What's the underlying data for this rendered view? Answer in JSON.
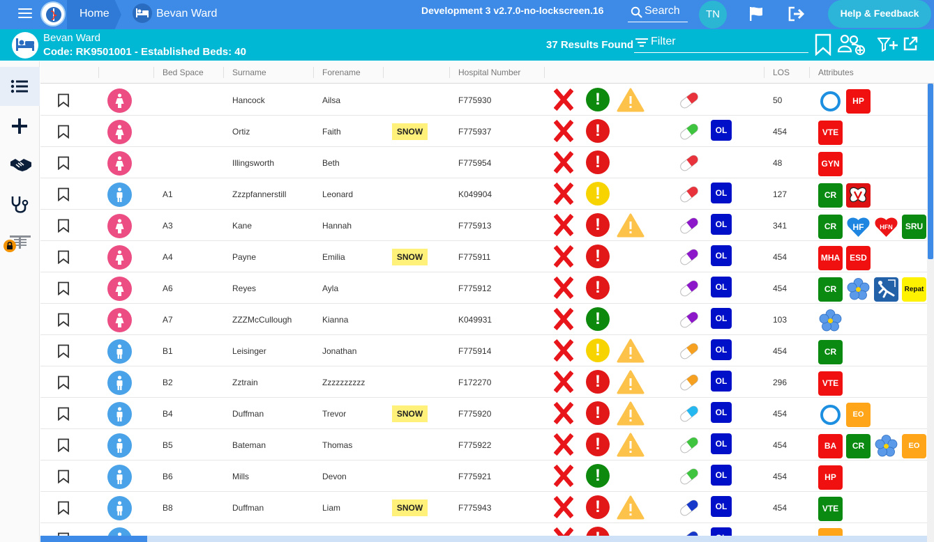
{
  "app": {
    "home_label": "Home",
    "ward_breadcrumb": "Bevan Ward",
    "environment": "Development 3 v2.7.0-no-lockscreen.16",
    "search_label": "Search",
    "user_initials": "TN",
    "help_label": "Help & Feedback"
  },
  "ward": {
    "name": "Bevan Ward",
    "code_line": "Code: RK9501001 - Established Beds: 40",
    "results": "37 Results Found",
    "filter_label": "Filter"
  },
  "colors": {
    "topbar": "#3d8be6",
    "wardbar": "#00b7d4",
    "female": "#ec4d82",
    "male": "#4aa3e8"
  },
  "sidebar": [
    "list-icon",
    "plus-icon",
    "handshake-icon",
    "stethoscope-icon",
    "locked-board-icon"
  ],
  "columns": {
    "bed_space": "Bed Space",
    "surname": "Surname",
    "forename": "Forename",
    "hospital_number": "Hospital Number",
    "los": "LOS",
    "attributes": "Attributes"
  },
  "rows": [
    {
      "sex": "f",
      "bed": "",
      "surname": "Hancock",
      "forename": "Ailsa",
      "snow": "",
      "hospital_number": "F775930",
      "alert": "green",
      "warning": true,
      "pill": "red",
      "ol": "",
      "los": "50",
      "attrs": [
        {
          "t": "ring",
          "l": ""
        },
        {
          "t": "red",
          "l": "HP"
        }
      ]
    },
    {
      "sex": "f",
      "bed": "",
      "surname": "Ortiz",
      "forename": "Faith",
      "snow": "SNOW",
      "hospital_number": "F775937",
      "alert": "red",
      "warning": false,
      "pill": "green",
      "ol": "OL",
      "los": "454",
      "attrs": [
        {
          "t": "red",
          "l": "VTE"
        }
      ]
    },
    {
      "sex": "f",
      "bed": "",
      "surname": "Illingsworth",
      "forename": "Beth",
      "snow": "",
      "hospital_number": "F775954",
      "alert": "red",
      "warning": false,
      "pill": "red",
      "ol": "",
      "los": "48",
      "attrs": [
        {
          "t": "red",
          "l": "GYN"
        }
      ]
    },
    {
      "sex": "m",
      "bed": "A1",
      "surname": "Zzzpfannerstill",
      "forename": "Leonard",
      "snow": "",
      "hospital_number": "K049904",
      "alert": "yellow",
      "warning": false,
      "pill": "red",
      "ol": "OL",
      "los": "127",
      "attrs": [
        {
          "t": "green",
          "l": "CR"
        },
        {
          "t": "butterfly",
          "l": ""
        }
      ]
    },
    {
      "sex": "f",
      "bed": "A3",
      "surname": "Kane",
      "forename": "Hannah",
      "snow": "",
      "hospital_number": "F775913",
      "alert": "red",
      "warning": true,
      "pill": "purple",
      "ol": "OL",
      "los": "341",
      "attrs": [
        {
          "t": "green",
          "l": "CR"
        },
        {
          "t": "heart-blue",
          "l": "HF"
        },
        {
          "t": "heart-red",
          "l": "HFN"
        },
        {
          "t": "green",
          "l": "SRU"
        }
      ]
    },
    {
      "sex": "f",
      "bed": "A4",
      "surname": "Payne",
      "forename": "Emilia",
      "snow": "SNOW",
      "hospital_number": "F775911",
      "alert": "red",
      "warning": false,
      "pill": "purple",
      "ol": "OL",
      "los": "454",
      "attrs": [
        {
          "t": "red",
          "l": "MHA"
        },
        {
          "t": "red",
          "l": "ESD"
        }
      ]
    },
    {
      "sex": "f",
      "bed": "A6",
      "surname": "Reyes",
      "forename": "Ayla",
      "snow": "",
      "hospital_number": "F775912",
      "alert": "red",
      "warning": false,
      "pill": "purple",
      "ol": "OL",
      "los": "454",
      "attrs": [
        {
          "t": "green",
          "l": "CR"
        },
        {
          "t": "flower",
          "l": ""
        },
        {
          "t": "fall",
          "l": ""
        },
        {
          "t": "yellow",
          "l": "Repat"
        }
      ]
    },
    {
      "sex": "f",
      "bed": "A7",
      "surname": "ZZZMcCullough",
      "forename": "Kianna",
      "snow": "",
      "hospital_number": "K049931",
      "alert": "green",
      "warning": false,
      "pill": "purple",
      "ol": "OL",
      "los": "103",
      "attrs": [
        {
          "t": "flower",
          "l": ""
        }
      ]
    },
    {
      "sex": "m",
      "bed": "B1",
      "surname": "Leisinger",
      "forename": "Jonathan",
      "snow": "",
      "hospital_number": "F775914",
      "alert": "yellow",
      "warning": true,
      "pill": "orange",
      "ol": "OL",
      "los": "454",
      "attrs": [
        {
          "t": "green",
          "l": "CR"
        }
      ]
    },
    {
      "sex": "m",
      "bed": "B2",
      "surname": "Zztrain",
      "forename": "Zzzzzzzzzz",
      "snow": "",
      "hospital_number": "F172270",
      "alert": "red",
      "warning": true,
      "pill": "orange",
      "ol": "OL",
      "los": "296",
      "attrs": [
        {
          "t": "red",
          "l": "VTE"
        }
      ]
    },
    {
      "sex": "m",
      "bed": "B4",
      "surname": "Duffman",
      "forename": "Trevor",
      "snow": "SNOW",
      "hospital_number": "F775920",
      "alert": "red",
      "warning": true,
      "pill": "cyan",
      "ol": "OL",
      "los": "454",
      "attrs": [
        {
          "t": "ring",
          "l": ""
        },
        {
          "t": "orange",
          "l": "EO"
        }
      ]
    },
    {
      "sex": "m",
      "bed": "B5",
      "surname": "Bateman",
      "forename": "Thomas",
      "snow": "",
      "hospital_number": "F775922",
      "alert": "red",
      "warning": true,
      "pill": "green",
      "ol": "OL",
      "los": "454",
      "attrs": [
        {
          "t": "red",
          "l": "BA"
        },
        {
          "t": "green",
          "l": "CR"
        },
        {
          "t": "flower",
          "l": ""
        },
        {
          "t": "orange",
          "l": "EO"
        }
      ]
    },
    {
      "sex": "m",
      "bed": "B6",
      "surname": "Mills",
      "forename": "Devon",
      "snow": "",
      "hospital_number": "F775921",
      "alert": "green",
      "warning": false,
      "pill": "green",
      "ol": "OL",
      "los": "454",
      "attrs": [
        {
          "t": "red",
          "l": "HP"
        }
      ]
    },
    {
      "sex": "m",
      "bed": "B8",
      "surname": "Duffman",
      "forename": "Liam",
      "snow": "SNOW",
      "hospital_number": "F775943",
      "alert": "red",
      "warning": true,
      "pill": "blue",
      "ol": "OL",
      "los": "454",
      "attrs": [
        {
          "t": "green",
          "l": "VTE"
        }
      ]
    },
    {
      "sex": "m",
      "bed": "",
      "surname": "",
      "forename": "",
      "snow": "",
      "hospital_number": "",
      "alert": "red",
      "warning": false,
      "pill": "blue",
      "ol": "OL",
      "los": "",
      "attrs": [
        {
          "t": "orange",
          "l": ""
        }
      ]
    }
  ]
}
